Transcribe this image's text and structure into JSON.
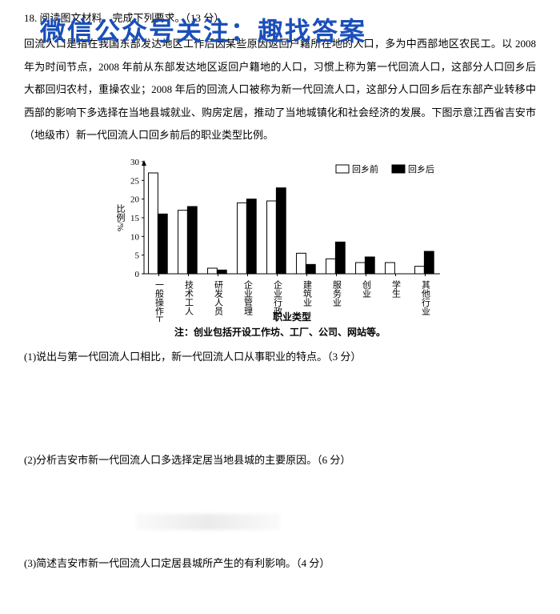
{
  "watermark": "微信公众号关注：趣找答案",
  "header": "18. 阅读图文材料，完成下列要求。（13 分）",
  "paragraph": "回流人口是指在我国东部发达地区工作后因某些原因返回户籍所在地的人口，多为中西部地区农民工。以 2008 年为时间节点，2008 年前从东部发达地区返回户籍地的人口，习惯上称为第一代回流人口，这部分人口回乡后大都回归农村，重操农业；2008 年后的回流人口被称为新一代回流人口，这部分人口回乡后在东部产业转移中西部的影响下多选择在当地县城就业、购房定居，推动了当地城镇化和社会经济的发展。下图示意江西省吉安市（地级市）新一代回流人口回乡前后的职业类型比例。",
  "chart": {
    "type": "bar",
    "ylabel": "比例/%",
    "xlabel": "职业类型",
    "ylim": [
      0,
      30
    ],
    "ytick_step": 5,
    "legend": {
      "before": "回乡前",
      "after": "回乡后"
    },
    "before_color": "#ffffff",
    "after_color": "#000000",
    "border_color": "#000000",
    "categories": [
      "一般操作工",
      "技术工人",
      "研发人员",
      "企业管理",
      "企业行政",
      "建筑业",
      "服务业",
      "创业",
      "学生",
      "其他行业"
    ],
    "before_values": [
      27,
      17,
      1.5,
      19,
      19.5,
      5.5,
      4,
      3,
      3,
      2
    ],
    "after_values": [
      16,
      18,
      1,
      20,
      23,
      2.5,
      8.5,
      4.5,
      0,
      6
    ]
  },
  "note": "注：创业包括开设工作坊、工厂、公司、网站等。",
  "q1": "(1)说出与第一代回流人口相比，新一代回流人口从事职业的特点。（3 分）",
  "q2": "(2)分析吉安市新一代回流人口多选择定居当地县城的主要原因。（6 分）",
  "q3": "(3)简述吉安市新一代回流人口定居县城所产生的有利影响。（4 分）"
}
